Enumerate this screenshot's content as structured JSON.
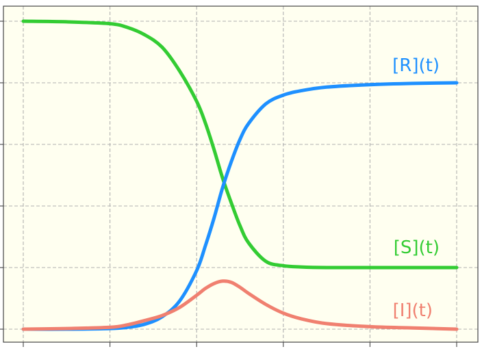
{
  "chart_data": {
    "type": "line",
    "title": "",
    "xlabel": "",
    "ylabel": "",
    "xlim": [
      0,
      5
    ],
    "ylim": [
      0,
      5
    ],
    "grid": true,
    "legend": "none",
    "x_ticks": [
      0,
      1,
      2,
      3,
      4,
      5
    ],
    "y_ticks": [
      0,
      1,
      2,
      3,
      4,
      5
    ],
    "background_color": "#fffff0",
    "series": [
      {
        "name": "[S](t)",
        "color": "#33cc33",
        "x": [
          0,
          0.5,
          1.0,
          1.2,
          1.4,
          1.6,
          1.8,
          2.0,
          2.1,
          2.2,
          2.3,
          2.4,
          2.5,
          2.6,
          2.8,
          3.0,
          3.2,
          3.5,
          4.0,
          4.5,
          5.0
        ],
        "y": [
          5.0,
          4.99,
          4.96,
          4.9,
          4.78,
          4.58,
          4.2,
          3.7,
          3.35,
          2.92,
          2.45,
          2.05,
          1.68,
          1.4,
          1.1,
          1.03,
          1.01,
          1.0,
          1.0,
          1.0,
          1.0
        ]
      },
      {
        "name": "[R](t)",
        "color": "#1e90ff",
        "x": [
          0,
          0.5,
          1.0,
          1.2,
          1.4,
          1.6,
          1.8,
          2.0,
          2.1,
          2.2,
          2.3,
          2.4,
          2.5,
          2.6,
          2.8,
          3.0,
          3.2,
          3.5,
          4.0,
          4.5,
          5.0
        ],
        "y": [
          0.0,
          0.0,
          0.01,
          0.03,
          0.08,
          0.2,
          0.45,
          0.95,
          1.35,
          1.8,
          2.3,
          2.72,
          3.08,
          3.34,
          3.66,
          3.8,
          3.87,
          3.93,
          3.97,
          3.99,
          4.0
        ]
      },
      {
        "name": "[I](t)",
        "color": "#f08070",
        "x": [
          0,
          0.5,
          1.0,
          1.2,
          1.4,
          1.6,
          1.8,
          2.0,
          2.1,
          2.2,
          2.3,
          2.4,
          2.5,
          2.6,
          2.8,
          3.0,
          3.2,
          3.5,
          4.0,
          4.5,
          5.0
        ],
        "y": [
          0.0,
          0.01,
          0.03,
          0.07,
          0.14,
          0.22,
          0.35,
          0.55,
          0.66,
          0.74,
          0.78,
          0.76,
          0.68,
          0.58,
          0.4,
          0.26,
          0.17,
          0.09,
          0.04,
          0.02,
          0.0
        ]
      }
    ]
  }
}
